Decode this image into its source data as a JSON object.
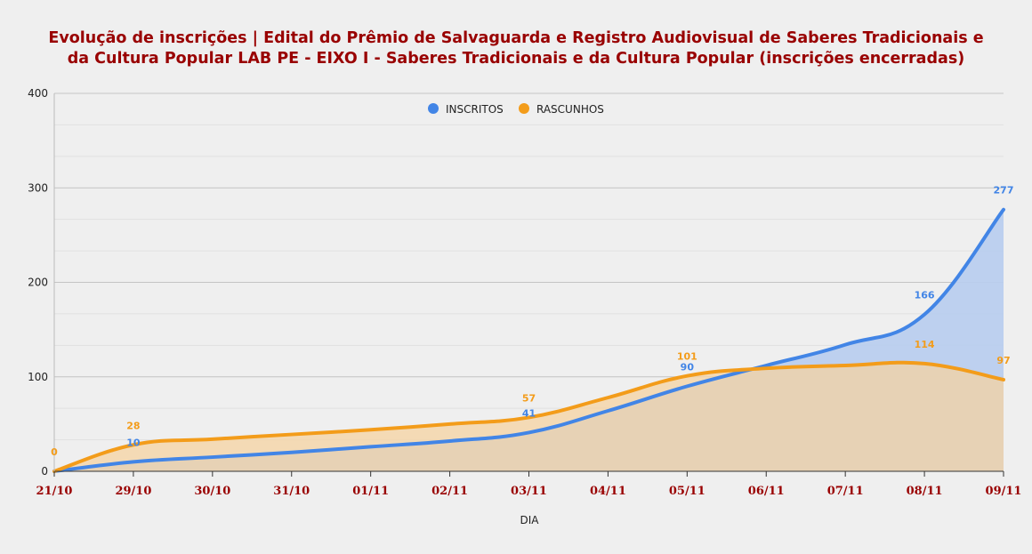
{
  "chart_data": {
    "type": "area",
    "title_lines": [
      "Evolução de inscrições | Edital do Prêmio de Salvaguarda e Registro Audiovisual de Saberes Tradicionais e",
      "da Cultura Popular LAB PE - EIXO I - Saberes Tradicionais e da Cultura Popular (inscrições encerradas)"
    ],
    "xlabel": "DIA",
    "ylabel": "",
    "categories": [
      "21/10",
      "29/10",
      "30/10",
      "31/10",
      "01/11",
      "02/11",
      "03/11",
      "04/11",
      "05/11",
      "06/11",
      "07/11",
      "08/11",
      "09/11"
    ],
    "y_ticks": [
      0,
      100,
      200,
      300,
      400
    ],
    "ylim": [
      0,
      400
    ],
    "grid": true,
    "legend_position": "top-center",
    "series": [
      {
        "name": "INSCRITOS",
        "color": "#4285e6",
        "fill": "#b9cdee",
        "values": [
          0,
          10,
          15,
          20,
          26,
          32,
          41,
          64,
          90,
          112,
          134,
          166,
          277
        ],
        "labels": {
          "1": "10",
          "6": "41",
          "8": "90",
          "11": "166",
          "12": "277"
        }
      },
      {
        "name": "RASCUNHOS",
        "color": "#f39c1a",
        "fill": "#f6d3a2",
        "values": [
          0,
          28,
          34,
          39,
          44,
          50,
          57,
          78,
          101,
          109,
          112,
          114,
          97
        ],
        "labels": {
          "0": "0",
          "1": "28",
          "6": "57",
          "8": "101",
          "11": "114",
          "12": "97"
        }
      }
    ],
    "overlap_fill": "#cfbca8",
    "axis_label_color": "#990000"
  }
}
